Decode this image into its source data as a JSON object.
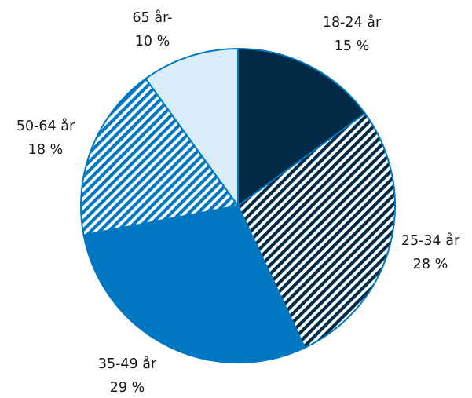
{
  "chart_data": {
    "type": "pie",
    "start_angle": "12 o'clock",
    "direction": "clockwise",
    "legend": "none",
    "slices": [
      {
        "category": "18-24 år",
        "value_label": "15 %",
        "value": 15,
        "fill": "#002a45",
        "pattern": "solid"
      },
      {
        "category": "25-34 år",
        "value_label": "28 %",
        "value": 28,
        "fill": "#002a45",
        "pattern": "diagonal-stripes"
      },
      {
        "category": "35-49 år",
        "value_label": "29 %",
        "value": 29,
        "fill": "#0077c1",
        "pattern": "solid"
      },
      {
        "category": "50-64 år",
        "value_label": "18 %",
        "value": 18,
        "fill": "#0077c1",
        "pattern": "diagonal-stripes"
      },
      {
        "category": "65 år-",
        "value_label": "10 %",
        "value": 10,
        "fill": "#d8edf8",
        "pattern": "solid"
      }
    ],
    "colors": {
      "dark": "#002a45",
      "blue": "#0077c1",
      "light": "#d8edf8",
      "edge": "#0077c1"
    }
  }
}
